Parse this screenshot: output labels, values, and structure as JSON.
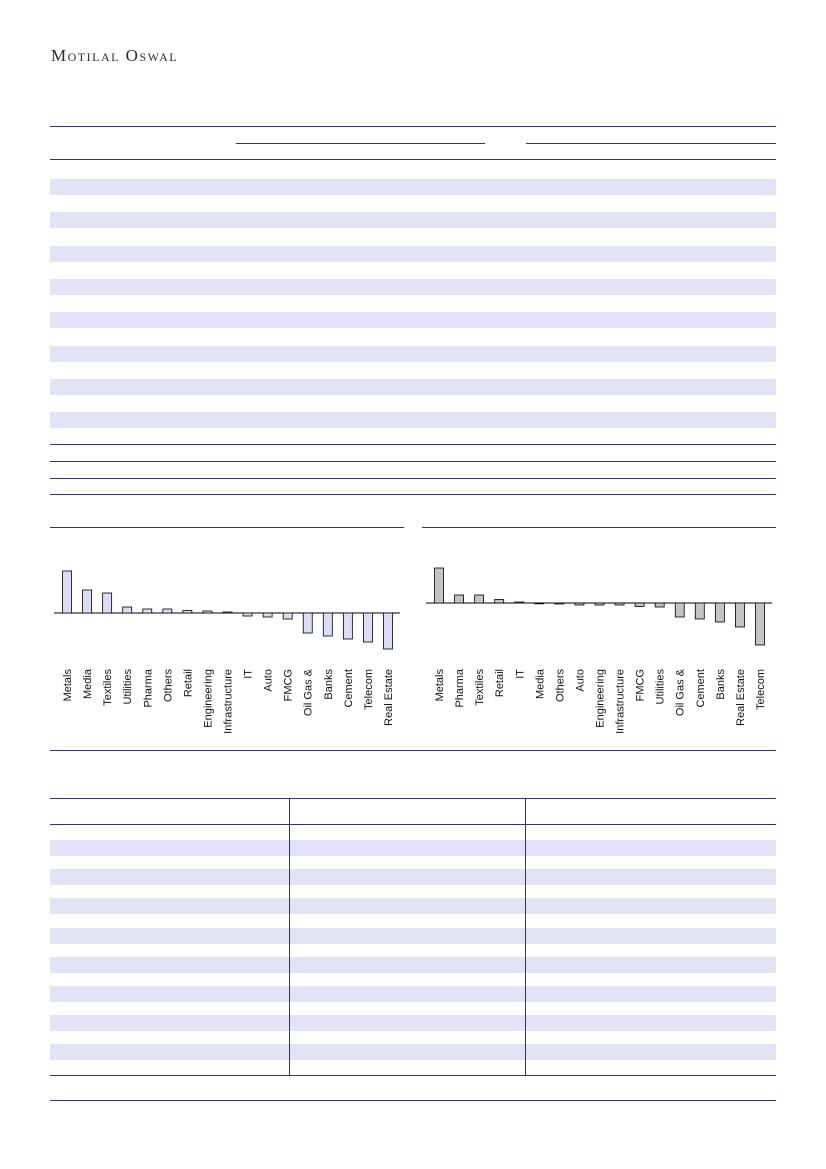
{
  "header": {
    "brand": "Motilal Oswal"
  },
  "chart_data": [
    {
      "type": "bar",
      "title": "",
      "xlabel": "",
      "ylabel": "",
      "color": "#dcdcf7",
      "categories": [
        "Metals",
        "Media",
        "Textiles",
        "Utilities",
        "Pharma",
        "Others",
        "Retail",
        "Engineering",
        "Infrastructure",
        "IT",
        "Auto",
        "FMCG",
        "Oil Gas &",
        "Banks",
        "Cement",
        "Telecom",
        "Real Estate"
      ],
      "values": [
        4.2,
        2.3,
        2.0,
        0.6,
        0.4,
        0.4,
        0.25,
        0.2,
        0.1,
        -0.3,
        -0.4,
        -0.6,
        -2.0,
        -2.3,
        -2.6,
        -2.9,
        -3.6
      ],
      "ylim": [
        -4,
        5
      ]
    },
    {
      "type": "bar",
      "title": "",
      "xlabel": "",
      "ylabel": "",
      "color": "#c4c4c4",
      "categories": [
        "Metals",
        "Pharma",
        "Textiles",
        "Retail",
        "IT",
        "Media",
        "Others",
        "Auto",
        "Engineering",
        "Infrastructure",
        "FMCG",
        "Utilities",
        "Oil Gas &",
        "Cement",
        "Banks",
        "Real Estate",
        "Telecom"
      ],
      "values": [
        3.5,
        0.8,
        0.8,
        0.35,
        0.1,
        0.0,
        -0.1,
        -0.2,
        -0.2,
        -0.2,
        -0.35,
        -0.4,
        -1.4,
        -1.6,
        -1.9,
        -2.4,
        -4.2
      ],
      "ylim": [
        -5,
        4
      ]
    }
  ]
}
